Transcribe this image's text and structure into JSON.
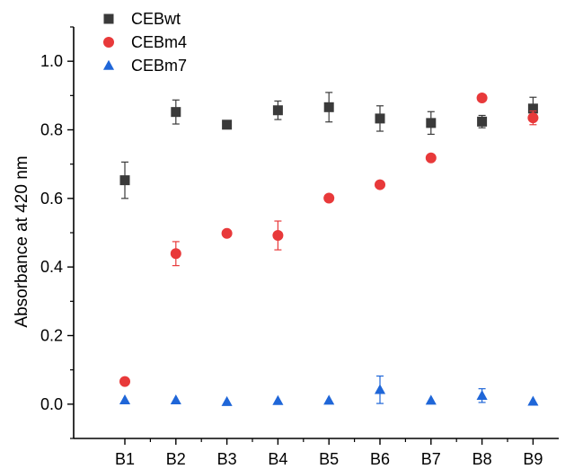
{
  "chart_data": {
    "type": "scatter",
    "title": "",
    "xlabel": "",
    "ylabel": "Absorbance at 420 nm",
    "categories": [
      "B1",
      "B2",
      "B3",
      "B4",
      "B5",
      "B6",
      "B7",
      "B8",
      "B9"
    ],
    "ylim": [
      -0.1,
      1.1
    ],
    "yticks": [
      0.0,
      0.2,
      0.4,
      0.6,
      0.8,
      1.0
    ],
    "ytick_labels": [
      "0.0",
      "0.2",
      "0.4",
      "0.6",
      "0.8",
      "1.0"
    ],
    "grid": false,
    "legend": "top-left",
    "series": [
      {
        "name": "CEBwt",
        "marker": "square",
        "color": "#3a3a3a",
        "values": [
          0.653,
          0.852,
          0.815,
          0.857,
          0.866,
          0.833,
          0.82,
          0.824,
          0.862
        ],
        "errors": [
          0.053,
          0.035,
          0.0,
          0.027,
          0.043,
          0.037,
          0.033,
          0.018,
          0.033
        ]
      },
      {
        "name": "CEBm4",
        "marker": "circle",
        "color": "#e8393a",
        "values": [
          0.066,
          0.439,
          0.498,
          0.492,
          0.601,
          0.64,
          0.718,
          0.893,
          0.835
        ],
        "errors": [
          0.0,
          0.035,
          0.0,
          0.042,
          0.0,
          0.0,
          0.0,
          0.0,
          0.02
        ]
      },
      {
        "name": "CEBm7",
        "marker": "triangle",
        "color": "#1f66d8",
        "values": [
          0.012,
          0.012,
          0.007,
          0.01,
          0.011,
          0.042,
          0.011,
          0.025,
          0.008
        ],
        "errors": [
          0.0,
          0.0,
          0.0,
          0.0,
          0.0,
          0.04,
          0.0,
          0.02,
          0.0
        ]
      }
    ]
  }
}
